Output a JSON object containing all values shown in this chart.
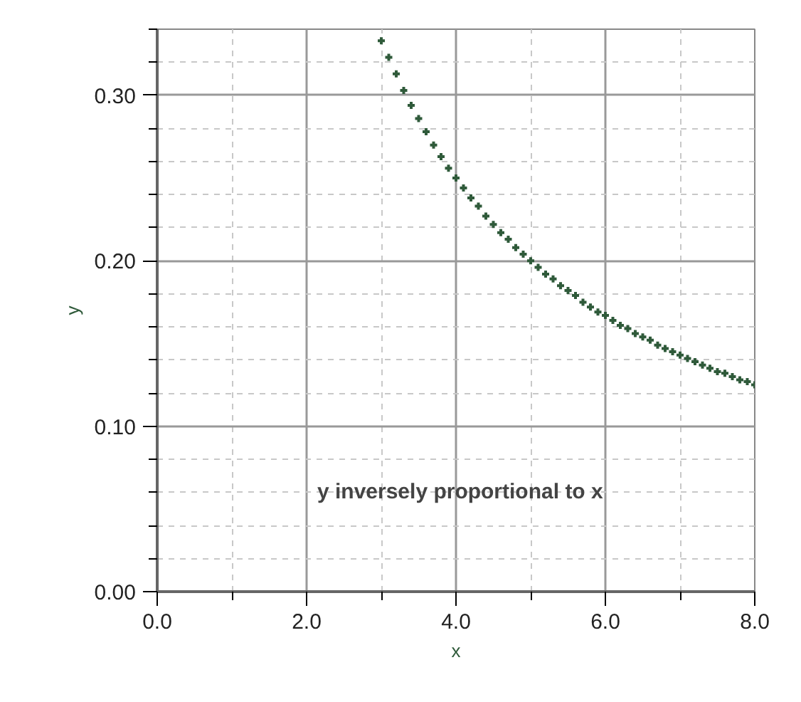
{
  "chart_data": {
    "type": "scatter",
    "xlabel": "x",
    "ylabel": "y",
    "annotations": [
      "y  inversely proportional to x"
    ],
    "x": [
      3.0,
      3.1,
      3.2,
      3.3,
      3.4,
      3.5,
      3.6,
      3.7,
      3.8,
      3.9,
      4.0,
      4.1,
      4.2,
      4.3,
      4.4,
      4.5,
      4.6,
      4.7,
      4.8,
      4.9,
      5.0,
      5.1,
      5.2,
      5.3,
      5.4,
      5.5,
      5.6,
      5.7,
      5.8,
      5.9,
      6.0,
      6.1,
      6.2,
      6.3,
      6.4,
      6.5,
      6.6,
      6.7,
      6.8,
      6.9,
      7.0,
      7.1,
      7.2,
      7.3,
      7.4,
      7.5,
      7.6,
      7.7,
      7.8,
      7.9,
      8.0
    ],
    "series": [
      {
        "color": "#2f5a3a",
        "values": [
          0.333,
          0.323,
          0.313,
          0.303,
          0.294,
          0.286,
          0.278,
          0.27,
          0.263,
          0.256,
          0.25,
          0.244,
          0.238,
          0.233,
          0.227,
          0.222,
          0.217,
          0.213,
          0.208,
          0.204,
          0.2,
          0.196,
          0.192,
          0.189,
          0.185,
          0.182,
          0.179,
          0.175,
          0.172,
          0.169,
          0.167,
          0.164,
          0.161,
          0.159,
          0.156,
          0.154,
          0.152,
          0.149,
          0.147,
          0.145,
          0.143,
          0.141,
          0.139,
          0.137,
          0.135,
          0.133,
          0.132,
          0.13,
          0.128,
          0.127,
          0.125
        ]
      }
    ],
    "xlim": [
      0,
      8
    ],
    "ylim": [
      0,
      0.34
    ],
    "xticks": [
      {
        "value": 0,
        "label": "0.0"
      },
      {
        "value": 1,
        "label": null
      },
      {
        "value": 2,
        "label": "2.0"
      },
      {
        "value": 3,
        "label": null
      },
      {
        "value": 4,
        "label": "4.0"
      },
      {
        "value": 5,
        "label": null
      },
      {
        "value": 6,
        "label": "6.0"
      },
      {
        "value": 7,
        "label": null
      },
      {
        "value": 8,
        "label": "8.0"
      }
    ],
    "yticks": [
      {
        "value": 0,
        "label": "0.00"
      },
      {
        "value": 0.02,
        "label": null
      },
      {
        "value": 0.04,
        "label": null
      },
      {
        "value": 0.06,
        "label": null
      },
      {
        "value": 0.08,
        "label": null
      },
      {
        "value": 0.1,
        "label": "0.10"
      },
      {
        "value": 0.12,
        "label": null
      },
      {
        "value": 0.14,
        "label": null
      },
      {
        "value": 0.16,
        "label": null
      },
      {
        "value": 0.18,
        "label": null
      },
      {
        "value": 0.2,
        "label": "0.20"
      },
      {
        "value": 0.22,
        "label": null
      },
      {
        "value": 0.24,
        "label": null
      },
      {
        "value": 0.26,
        "label": null
      },
      {
        "value": 0.28,
        "label": null
      },
      {
        "value": 0.3,
        "label": "0.30"
      },
      {
        "value": 0.32,
        "label": null
      },
      {
        "value": 0.34,
        "label": null
      }
    ],
    "grid": true,
    "marker": "cross"
  }
}
